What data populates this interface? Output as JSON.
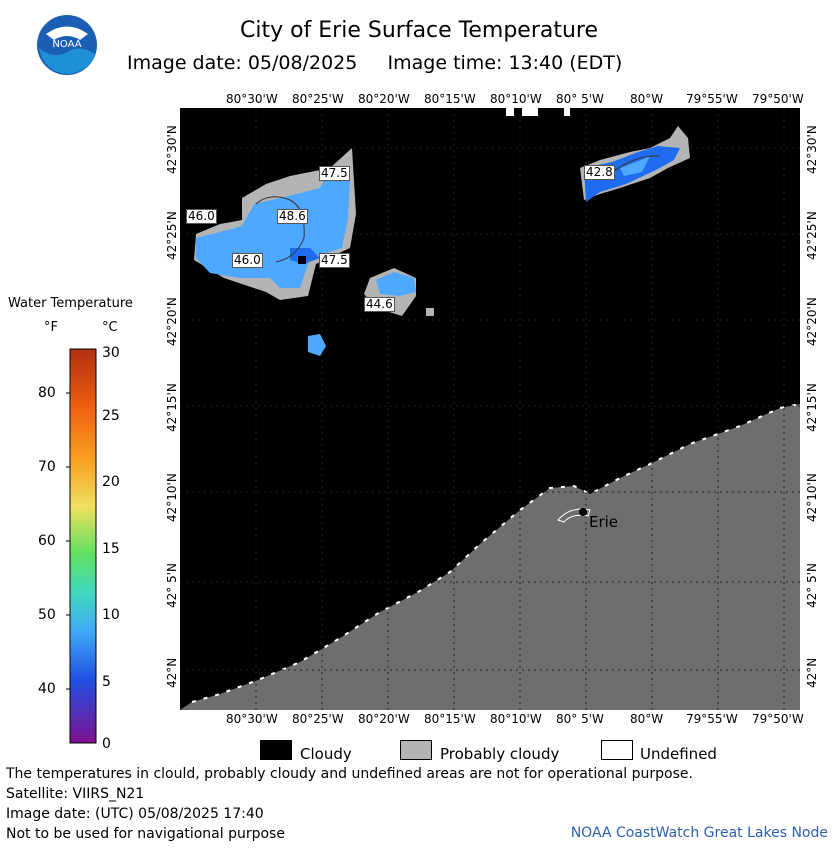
{
  "header": {
    "title": "City of Erie Surface Temperature",
    "subtitle": "Image date: 05/08/2025     Image time: 13:40 (EDT)",
    "logo_text": "NOAA"
  },
  "map": {
    "lon_labels_top": [
      "80°30'W",
      "80°25'W",
      "80°20'W",
      "80°15'W",
      "80°10'W",
      "80° 5'W",
      "80°W",
      "79°55'W",
      "79°50'W"
    ],
    "lon_labels_bottom": [
      "80°30'W",
      "80°25'W",
      "80°20'W",
      "80°15'W",
      "80°10'W",
      "80° 5'W",
      "80°W",
      "79°55'W",
      "79°50'W"
    ],
    "lat_labels": [
      "42°30'N",
      "42°25'N",
      "42°20'N",
      "42°15'N",
      "42°10'N",
      "42° 5'N",
      "42°N"
    ],
    "city_label": "Erie",
    "temp_labels": [
      "47.5",
      "48.6",
      "46.0",
      "46.0",
      "47.5",
      "44.6",
      "42.8"
    ],
    "colors": {
      "cloudy": "#000000",
      "probably_cloudy": "#b4b4b4",
      "land": "#6e6e6e",
      "water_warm": "#4fa8ff",
      "water_cool": "#1f6cf0"
    }
  },
  "legend": {
    "title": "Water Temperature",
    "unit_f": "°F",
    "unit_c": "°C",
    "f_ticks": [
      "80",
      "70",
      "60",
      "50",
      "40"
    ],
    "c_ticks": [
      "30",
      "25",
      "20",
      "15",
      "10",
      "5",
      "0"
    ]
  },
  "key": {
    "cloudy": "Cloudy",
    "probably_cloudy": "Probably cloudy",
    "undefined": "Undefined"
  },
  "footer": {
    "disclaimer": "The temperatures in clould, probably cloudy and undefined areas are not for operational purpose.",
    "satellite": "Satellite: VIIRS_N21",
    "image_date_utc": "Image date: (UTC) 05/08/2025  17:40",
    "nav_warning": "Not to be used for navigational purpose",
    "credit": "NOAA CoastWatch Great Lakes Node"
  }
}
